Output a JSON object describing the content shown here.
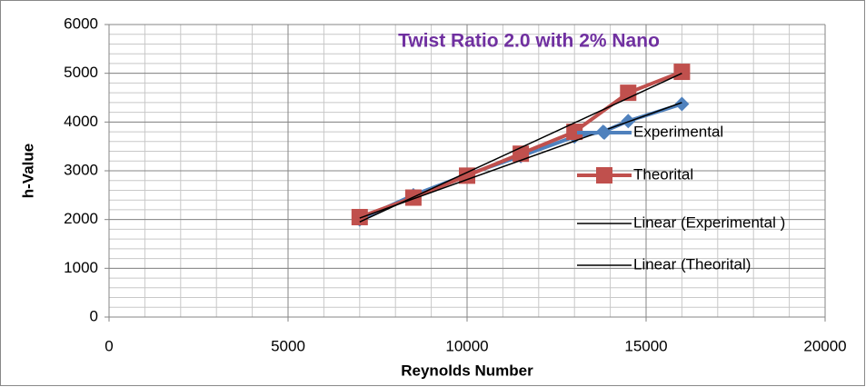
{
  "chart_data": {
    "type": "scatter",
    "title": "Twist Ratio 2.0 with 2% Nano",
    "title_color": "#7030a0",
    "x_label": "Reynolds Number",
    "y_label": "h-Value",
    "xlim": [
      0,
      20000
    ],
    "xticks": [
      0,
      5000,
      10000,
      15000,
      20000
    ],
    "ylim": [
      0,
      6000
    ],
    "yticks": [
      0,
      1000,
      2000,
      3000,
      4000,
      5000,
      6000
    ],
    "grid": true,
    "x_minor_step": 1000,
    "y_minor_step": 200,
    "legend": "right",
    "series": [
      {
        "name": "Experimental",
        "color": "#4f81bd",
        "marker": "diamond",
        "x": [
          7000,
          8500,
          10000,
          11500,
          13000,
          13800,
          14500,
          16000
        ],
        "values": [
          2000,
          2500,
          2920,
          3300,
          3700,
          3800,
          4020,
          4370
        ]
      },
      {
        "name": "Theorital",
        "color": "#c0504d",
        "marker": "square",
        "x": [
          7000,
          8500,
          10000,
          11500,
          13000,
          14500,
          16000
        ],
        "values": [
          2050,
          2450,
          2900,
          3350,
          3800,
          4600,
          5030
        ]
      },
      {
        "name": "Linear (Experimental )",
        "color": "#000000",
        "marker": "none",
        "x": [
          7000,
          16000
        ],
        "values": [
          2030,
          4400
        ]
      },
      {
        "name": "Linear (Theorital)",
        "color": "#000000",
        "marker": "none",
        "x": [
          7000,
          16000
        ],
        "values": [
          1950,
          5000
        ]
      }
    ]
  }
}
